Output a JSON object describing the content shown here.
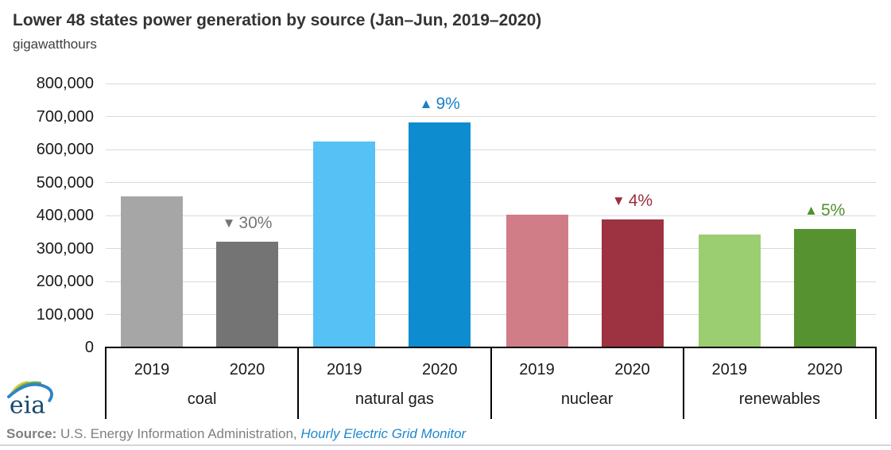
{
  "title": "Lower 48 states power generation by source (Jan–Jun, 2019–2020)",
  "subtitle": "gigawatthours",
  "chart_data": {
    "type": "bar",
    "title": "Lower 48 states power generation by source (Jan–Jun, 2019–2020)",
    "ylabel": "gigawatthours",
    "ylim": [
      0,
      800000
    ],
    "ytick_step": 100000,
    "ytick_labels": [
      "0",
      "100,000",
      "200,000",
      "300,000",
      "400,000",
      "500,000",
      "600,000",
      "700,000",
      "800,000"
    ],
    "grid": "horizontal",
    "legend": "none",
    "categories": [
      "coal",
      "natural gas",
      "nuclear",
      "renewables"
    ],
    "series": [
      {
        "name": "2019",
        "values": [
          458000,
          624000,
          403000,
          343000
        ],
        "colors": [
          "#a6a6a6",
          "#55c1f5",
          "#d07d87",
          "#9bcd71"
        ]
      },
      {
        "name": "2020",
        "values": [
          320000,
          681000,
          388000,
          360000
        ],
        "colors": [
          "#747474",
          "#0e8cd0",
          "#9d3341",
          "#579231"
        ]
      }
    ],
    "annotations": [
      {
        "category": "coal",
        "arrow": "▼",
        "direction": "down",
        "label": "30%",
        "color": "#757575"
      },
      {
        "category": "natural gas",
        "arrow": "▲",
        "direction": "up",
        "label": "9%",
        "color": "#1b7fc6"
      },
      {
        "category": "nuclear",
        "arrow": "▼",
        "direction": "down",
        "label": "4%",
        "color": "#9c2f3e"
      },
      {
        "category": "renewables",
        "arrow": "▲",
        "direction": "up",
        "label": "5%",
        "color": "#538f2c"
      }
    ]
  },
  "logo": {
    "text": "eia"
  },
  "source": {
    "prefix": "Source:",
    "agency": " U.S. Energy Information Administration, ",
    "link": "Hourly Electric Grid Monitor"
  },
  "colors": {
    "gridline": "#d9d9d9",
    "axis": "#000000",
    "source_text": "#7f7f7f",
    "source_link": "#2089cc"
  }
}
